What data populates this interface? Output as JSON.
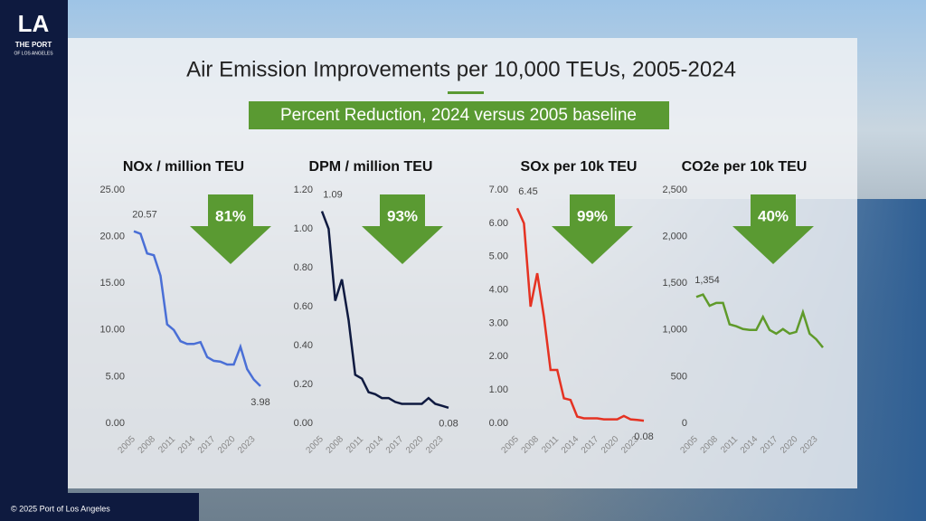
{
  "slide": {
    "logo": "LA",
    "logo_line1": "THE PORT",
    "logo_line2": "OF LOS ANGELES",
    "title": "Air Emission Improvements per 10,000 TEUs, 2005-2024",
    "subtitle": "Percent Reduction, 2024 versus 2005 baseline",
    "footer": "© 2025 Port of Los Angeles"
  },
  "chart_data": [
    {
      "type": "line",
      "title": "NOx / million TEU",
      "reduction": "81%",
      "color": "#4a6fd6",
      "x": [
        2005,
        2006,
        2007,
        2008,
        2009,
        2010,
        2011,
        2012,
        2013,
        2014,
        2015,
        2016,
        2017,
        2018,
        2019,
        2020,
        2021,
        2022,
        2023,
        2024
      ],
      "values": [
        20.57,
        20.3,
        18.2,
        18.0,
        15.8,
        10.6,
        10.0,
        8.8,
        8.5,
        8.5,
        8.7,
        7.1,
        6.7,
        6.6,
        6.3,
        6.3,
        8.2,
        5.8,
        4.7,
        3.98
      ],
      "value_labels": [
        "20.57",
        null,
        null,
        null,
        null,
        null,
        null,
        null,
        null,
        null,
        null,
        null,
        null,
        null,
        null,
        null,
        null,
        null,
        null,
        "3.98"
      ],
      "xlim": [
        2005,
        2024
      ],
      "xticks": [
        2005,
        2008,
        2011,
        2014,
        2017,
        2020,
        2023
      ],
      "ylim": [
        0,
        25
      ],
      "yticks": [
        {
          "value": 0,
          "label": "0.00"
        },
        {
          "value": 5,
          "label": "5.00"
        },
        {
          "value": 10,
          "label": "10.00"
        },
        {
          "value": 15,
          "label": "15.00"
        },
        {
          "value": 20,
          "label": "20.00"
        },
        {
          "value": 25,
          "label": "25.00"
        }
      ]
    },
    {
      "type": "line",
      "title": "DPM / million TEU",
      "reduction": "93%",
      "color": "#0f1a40",
      "x": [
        2005,
        2006,
        2007,
        2008,
        2009,
        2010,
        2011,
        2012,
        2013,
        2014,
        2015,
        2016,
        2017,
        2018,
        2019,
        2020,
        2021,
        2022,
        2023,
        2024
      ],
      "values": [
        1.09,
        1.0,
        0.63,
        0.74,
        0.53,
        0.25,
        0.23,
        0.16,
        0.15,
        0.13,
        0.13,
        0.11,
        0.1,
        0.1,
        0.1,
        0.1,
        0.13,
        0.1,
        0.09,
        0.08
      ],
      "value_labels": [
        "1.09",
        null,
        null,
        null,
        null,
        null,
        null,
        null,
        null,
        null,
        null,
        null,
        null,
        null,
        null,
        null,
        null,
        null,
        null,
        "0.08"
      ],
      "xlim": [
        2005,
        2024
      ],
      "xticks": [
        2005,
        2008,
        2011,
        2014,
        2017,
        2020,
        2023
      ],
      "ylim": [
        0,
        1.2
      ],
      "yticks": [
        {
          "value": 0,
          "label": "0.00"
        },
        {
          "value": 0.2,
          "label": "0.20"
        },
        {
          "value": 0.4,
          "label": "0.40"
        },
        {
          "value": 0.6,
          "label": "0.60"
        },
        {
          "value": 0.8,
          "label": "0.80"
        },
        {
          "value": 1,
          "label": "1.00"
        },
        {
          "value": 1.2,
          "label": "1.20"
        }
      ]
    },
    {
      "type": "line",
      "title": "SOx per 10k TEU",
      "reduction": "99%",
      "color": "#e53222",
      "x": [
        2005,
        2006,
        2007,
        2008,
        2009,
        2010,
        2011,
        2012,
        2013,
        2014,
        2015,
        2016,
        2017,
        2018,
        2019,
        2020,
        2021,
        2022,
        2023,
        2024
      ],
      "values": [
        6.45,
        6.0,
        3.5,
        4.5,
        3.2,
        1.6,
        1.6,
        0.75,
        0.7,
        0.2,
        0.15,
        0.15,
        0.15,
        0.12,
        0.12,
        0.12,
        0.22,
        0.12,
        0.1,
        0.08
      ],
      "value_labels": [
        "6.45",
        null,
        null,
        null,
        null,
        null,
        null,
        null,
        null,
        null,
        null,
        null,
        null,
        null,
        null,
        null,
        null,
        null,
        null,
        "0.08"
      ],
      "xlim": [
        2005,
        2024
      ],
      "xticks": [
        2005,
        2008,
        2011,
        2014,
        2017,
        2020,
        2023
      ],
      "ylim": [
        0,
        7
      ],
      "yticks": [
        {
          "value": 0,
          "label": "0.00"
        },
        {
          "value": 1,
          "label": "1.00"
        },
        {
          "value": 2,
          "label": "2.00"
        },
        {
          "value": 3,
          "label": "3.00"
        },
        {
          "value": 4,
          "label": "4.00"
        },
        {
          "value": 5,
          "label": "5.00"
        },
        {
          "value": 6,
          "label": "6.00"
        },
        {
          "value": 7,
          "label": "7.00"
        }
      ]
    },
    {
      "type": "line",
      "title": "CO2e per 10k TEU",
      "reduction": "40%",
      "color": "#5f9a2a",
      "x": [
        2005,
        2006,
        2007,
        2008,
        2009,
        2010,
        2011,
        2012,
        2013,
        2014,
        2015,
        2016,
        2017,
        2018,
        2019,
        2020,
        2021,
        2022,
        2023,
        2024
      ],
      "values": [
        1354,
        1380,
        1260,
        1290,
        1290,
        1060,
        1040,
        1010,
        1000,
        1000,
        1140,
        1000,
        960,
        1010,
        960,
        980,
        1190,
        960,
        900,
        812
      ],
      "value_labels": [
        "1,354",
        null,
        null,
        null,
        null,
        null,
        null,
        null,
        null,
        null,
        null,
        null,
        null,
        null,
        null,
        null,
        null,
        null,
        null,
        null
      ],
      "xlim": [
        2005,
        2024
      ],
      "xticks": [
        2005,
        2008,
        2011,
        2014,
        2017,
        2020,
        2023
      ],
      "ylim": [
        0,
        2500
      ],
      "yticks": [
        0,
        500,
        {
          "value": 1000,
          "label": "1,000"
        },
        {
          "value": 1500,
          "label": "1,500"
        },
        {
          "value": 2000,
          "label": "2,000"
        },
        {
          "value": 2500,
          "label": "2,500"
        }
      ]
    }
  ]
}
